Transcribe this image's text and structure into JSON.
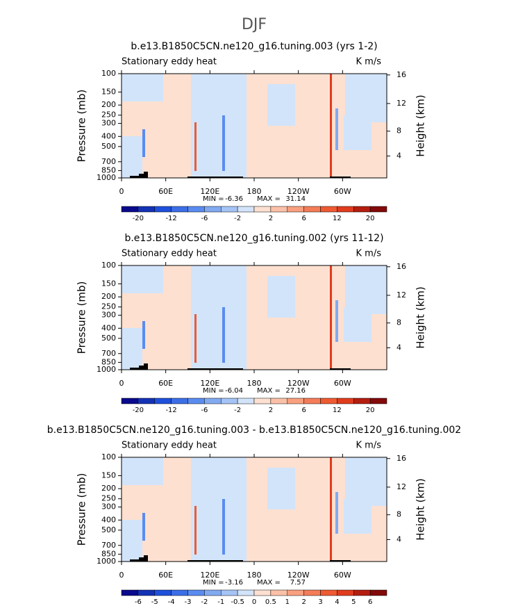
{
  "title": "DJF",
  "chart_data": [
    {
      "type": "contour",
      "title": "b.e13.B1850C5CN.ne120_g16.tuning.003 (yrs 1-2)",
      "left_label": "Stationary eddy heat",
      "right_label": "K m/s",
      "ylabel": "Pressure (mb)",
      "y2label": "Height (km)",
      "xlim": [
        0,
        360
      ],
      "xticks": [
        0,
        {
          "value": 60,
          "label": "60E"
        },
        {
          "value": 120,
          "label": "120E"
        },
        180,
        {
          "value": 240,
          "label": "120W"
        },
        {
          "value": 300,
          "label": "60W"
        }
      ],
      "ylim": [
        1000,
        100
      ],
      "log_y": true,
      "yticks": [
        100,
        150,
        200,
        250,
        300,
        400,
        500,
        700,
        850,
        1000
      ],
      "y2ticks": [
        4,
        8,
        12,
        16
      ],
      "min_label": "MIN =",
      "min": -6.36,
      "max_label": "MAX =",
      "max": 31.14,
      "colorbar": {
        "labels": [
          -20,
          -12,
          -6,
          -2,
          2,
          6,
          12,
          20
        ],
        "colors": [
          "#0a0a8c",
          "#1432b4",
          "#1e50dc",
          "#3c6ee6",
          "#5a8cf0",
          "#82aaf0",
          "#a5c3f5",
          "#d2e4fa",
          "#fde0d0",
          "#fbc0a8",
          "#f8a080",
          "#f47c58",
          "#ee5a32",
          "#e03c1e",
          "#b41e0f",
          "#820a0a"
        ]
      }
    },
    {
      "type": "contour",
      "title": "b.e13.B1850C5CN.ne120_g16.tuning.002 (yrs 11-12)",
      "left_label": "Stationary eddy heat",
      "right_label": "K m/s",
      "ylabel": "Pressure (mb)",
      "y2label": "Height (km)",
      "xlim": [
        0,
        360
      ],
      "xticks": [
        0,
        {
          "value": 60,
          "label": "60E"
        },
        {
          "value": 120,
          "label": "120E"
        },
        180,
        {
          "value": 240,
          "label": "120W"
        },
        {
          "value": 300,
          "label": "60W"
        }
      ],
      "ylim": [
        1000,
        100
      ],
      "log_y": true,
      "yticks": [
        100,
        150,
        200,
        250,
        300,
        400,
        500,
        700,
        850,
        1000
      ],
      "y2ticks": [
        4,
        8,
        12,
        16
      ],
      "min_label": "MIN =",
      "min": -6.04,
      "max_label": "MAX =",
      "max": 27.16,
      "colorbar": {
        "labels": [
          -20,
          -12,
          -6,
          -2,
          2,
          6,
          12,
          20
        ],
        "colors": [
          "#0a0a8c",
          "#1432b4",
          "#1e50dc",
          "#3c6ee6",
          "#5a8cf0",
          "#82aaf0",
          "#a5c3f5",
          "#d2e4fa",
          "#fde0d0",
          "#fbc0a8",
          "#f8a080",
          "#f47c58",
          "#ee5a32",
          "#e03c1e",
          "#b41e0f",
          "#820a0a"
        ]
      }
    },
    {
      "type": "contour",
      "title": "b.e13.B1850C5CN.ne120_g16.tuning.003 - b.e13.B1850C5CN.ne120_g16.tuning.002",
      "left_label": "Stationary eddy heat",
      "right_label": "K m/s",
      "ylabel": "Pressure (mb)",
      "y2label": "Height (km)",
      "xlim": [
        0,
        360
      ],
      "xticks": [
        0,
        {
          "value": 60,
          "label": "60E"
        },
        {
          "value": 120,
          "label": "120E"
        },
        180,
        {
          "value": 240,
          "label": "120W"
        },
        {
          "value": 300,
          "label": "60W"
        }
      ],
      "ylim": [
        1000,
        100
      ],
      "log_y": true,
      "yticks": [
        100,
        150,
        200,
        250,
        300,
        400,
        500,
        700,
        850,
        1000
      ],
      "y2ticks": [
        4,
        8,
        12,
        16
      ],
      "min_label": "MIN =",
      "min": -3.16,
      "max_label": "MAX =",
      "max": 7.57,
      "colorbar": {
        "labels": [
          -6,
          -5,
          -4,
          -3,
          -2,
          -1,
          -0.5,
          0,
          0.5,
          1,
          2,
          3,
          4,
          5,
          6
        ],
        "colors": [
          "#0a0a8c",
          "#1432b4",
          "#1e50dc",
          "#3c6ee6",
          "#5a8cf0",
          "#82aaf0",
          "#a5c3f5",
          "#d2e4fa",
          "#fde0d0",
          "#fbc0a8",
          "#f8a080",
          "#f47c58",
          "#ee5a32",
          "#e03c1e",
          "#b41e0f",
          "#820a0a"
        ]
      }
    }
  ]
}
